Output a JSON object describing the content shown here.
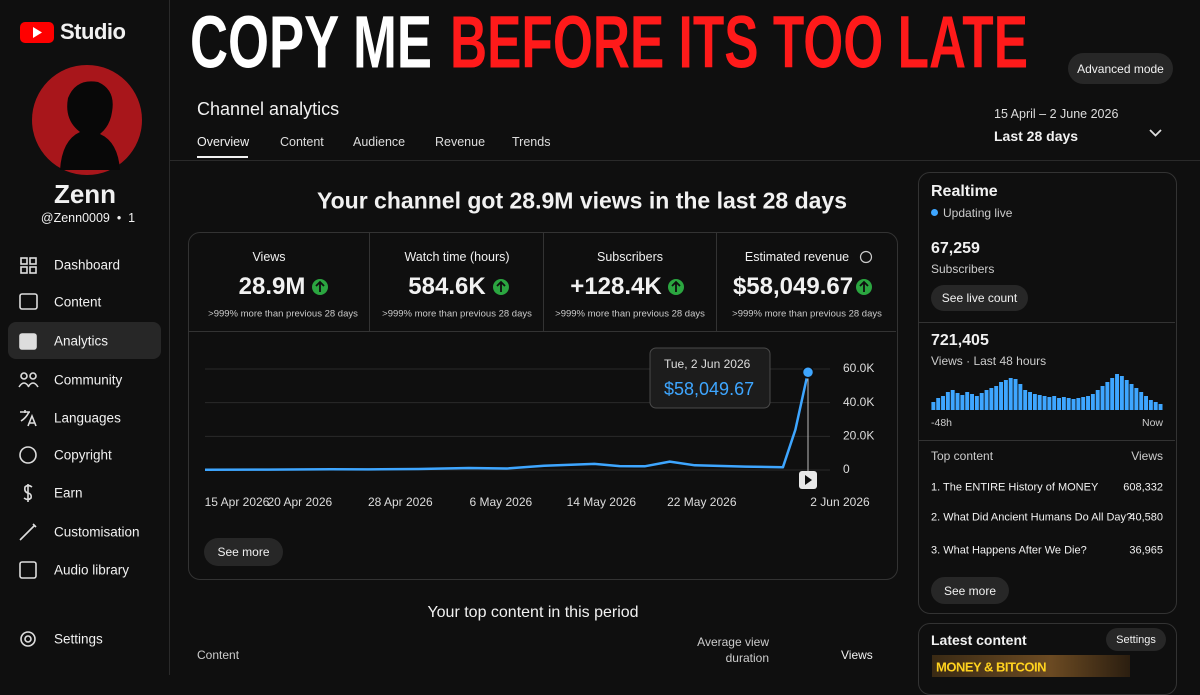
{
  "header": {
    "title": "COPY ME",
    "title_highlight": "BEFORE ITS TOO LATE",
    "advanced_mode": "Advanced mode"
  },
  "sidebar": {
    "logo": "Studio",
    "channel_name": "Zenn",
    "handle": "@Zenn0009  •  1",
    "nav": [
      "Dashboard",
      "Content",
      "Analytics",
      "Community",
      "Languages",
      "Copyright",
      "Earn",
      "Customisation",
      "Audio library"
    ],
    "settings": "Settings"
  },
  "analytics": {
    "title": "Channel analytics",
    "tabs": [
      "Overview",
      "Content",
      "Audience",
      "Revenue",
      "Trends"
    ],
    "date_range": "15 April – 2 June 2026",
    "period": "Last 28 days",
    "headline": "Your channel got 28.9M views in the last 28 days",
    "metrics": [
      {
        "label": "Views",
        "value": "28.9M",
        "change": ">999% more than previous 28 days"
      },
      {
        "label": "Watch time (hours)",
        "value": "584.6K",
        "change": ">999% more than previous 28 days"
      },
      {
        "label": "Subscribers",
        "value": "+128.4K",
        "change": ">999% more than previous 28 days"
      },
      {
        "label": "Estimated revenue",
        "value": "$58,049.67",
        "change": ">999% more than previous 28 days"
      }
    ],
    "see_more": "See more",
    "top_content": {
      "title": "Your top content in this period",
      "columns": [
        "Content",
        "Average view duration",
        "Views"
      ]
    }
  },
  "realtime": {
    "title": "Realtime",
    "status": "Updating live",
    "subscribers": "67,259",
    "subscribers_label": "Subscribers",
    "live_count": "See live count",
    "views": "721,405",
    "views_label": "Views · Last 48 hours",
    "top_content_label": "Top content",
    "views_column": "Views",
    "items": [
      {
        "title": "1. The ENTIRE History of MONEY",
        "views": "608,332"
      },
      {
        "title": "2. What Did Ancient Humans Do All Day?",
        "views": "40,580"
      },
      {
        "title": "3. What Happens After We Die?",
        "views": "36,965"
      }
    ],
    "see_more": "See more"
  },
  "latest_content": {
    "title": "Latest content",
    "settings": "Settings",
    "thumbnail_text": "MONEY & BITCOIN"
  },
  "chart_data": [
    {
      "type": "line",
      "x": [
        "15 Apr 2026",
        "20 Apr 2026",
        "25 Apr 2026",
        "28 Apr 2026",
        "2 May 2026",
        "6 May 2026",
        "9 May 2026",
        "12 May 2026",
        "16 May 2026",
        "18 May 2026",
        "20 May 2026",
        "22 May 2026",
        "24 May 2026",
        "28 May 2026",
        "31 May 2026",
        "1 Jun 2026",
        "2 Jun 2026"
      ],
      "values": [
        200,
        250,
        400,
        350,
        600,
        1200,
        900,
        2500,
        3600,
        2300,
        2200,
        5000,
        2800,
        2000,
        1600,
        24000,
        58049.67
      ],
      "value_labels": [
        null,
        null,
        null,
        null,
        null,
        null,
        null,
        null,
        null,
        null,
        null,
        null,
        null,
        null,
        null,
        null,
        "$58,049.67"
      ],
      "tooltip_date": "Tue, 2 Jun 2026",
      "color": "#3ea6ff",
      "xlim": [
        "15 Apr 2026",
        "2 Jun 2026"
      ],
      "xticks": [
        "15 Apr 2026",
        "20 Apr 2026",
        "28 Apr 2026",
        "6 May 2026",
        "14 May 2026",
        "22 May 2026",
        "2 Jun 2026"
      ],
      "ylim": [
        0,
        60000
      ],
      "yticks": [
        0,
        {
          "value": 20000,
          "label": "20.0K"
        },
        {
          "value": 40000,
          "label": "40.0K"
        },
        {
          "value": 60000,
          "label": "60.0K"
        }
      ],
      "grid": true
    },
    {
      "type": "bar",
      "categories": [
        "-48h",
        null,
        null,
        null,
        null,
        null,
        null,
        null,
        null,
        null,
        null,
        null,
        null,
        null,
        null,
        null,
        null,
        null,
        null,
        null,
        null,
        null,
        null,
        null,
        null,
        null,
        null,
        null,
        null,
        null,
        null,
        null,
        null,
        null,
        null,
        null,
        null,
        null,
        null,
        null,
        null,
        null,
        null,
        null,
        null,
        null,
        null,
        "Now"
      ],
      "values": [
        8000,
        12000,
        14000,
        18000,
        20000,
        17000,
        15000,
        18000,
        16000,
        14000,
        17000,
        20000,
        22000,
        24000,
        28000,
        30000,
        32000,
        31000,
        26000,
        20000,
        18000,
        16000,
        15000,
        14000,
        13000,
        14000,
        12000,
        13000,
        12000,
        11000,
        12000,
        13000,
        14000,
        16000,
        20000,
        24000,
        28000,
        32000,
        36000,
        34000,
        30000,
        26000,
        22000,
        18000,
        14000,
        10000,
        8000,
        6000
      ],
      "color": "#3ea6ff"
    }
  ]
}
